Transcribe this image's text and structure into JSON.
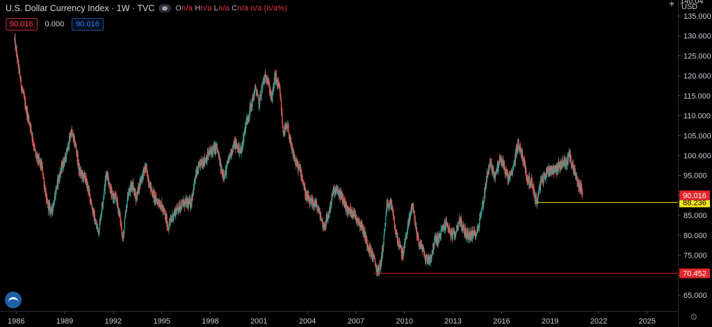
{
  "legend": {
    "title": "U.S. Dollar Currency Index · 1W · TVC",
    "ohlc": [
      {
        "key": "O",
        "val": "n/a"
      },
      {
        "key": "H",
        "val": "n/a"
      },
      {
        "key": "L",
        "val": "n/a"
      },
      {
        "key": "C",
        "val": "n/a"
      },
      {
        "key": "",
        "val": "n/a (n/a%)"
      }
    ],
    "badges": {
      "last": "90.016",
      "change": "0.000",
      "close": "90.016"
    },
    "eye_icon": "eye-toggle-icon"
  },
  "axis": {
    "currency": "USD",
    "top_partial_label": "140.04"
  },
  "chart_data": {
    "type": "candlestick",
    "title": "U.S. Dollar Currency Index",
    "interval": "1W",
    "source": "TVC",
    "ylim": [
      61,
      139
    ],
    "xlim": [
      1985.0,
      2026.9
    ],
    "y_ticks": [
      "135.000",
      "130.000",
      "125.000",
      "120.000",
      "115.000",
      "110.000",
      "105.000",
      "100.000",
      "95.000",
      "90.000",
      "85.000",
      "80.000",
      "75.000",
      "70.000",
      "65.000"
    ],
    "x_ticks": [
      "1986",
      "1989",
      "1992",
      "1995",
      "1998",
      "2001",
      "2004",
      "2007",
      "2010",
      "2013",
      "2016",
      "2019",
      "2022",
      "2025"
    ],
    "path": [
      [
        1985.9,
        129.0
      ],
      [
        1986.3,
        118.0
      ],
      [
        1986.6,
        112.0
      ],
      [
        1986.9,
        107.0
      ],
      [
        1987.2,
        100.0
      ],
      [
        1987.6,
        97.0
      ],
      [
        1987.9,
        88.0
      ],
      [
        1988.2,
        86.0
      ],
      [
        1988.6,
        94.0
      ],
      [
        1988.9,
        98.0
      ],
      [
        1989.1,
        100.0
      ],
      [
        1989.4,
        106.0
      ],
      [
        1989.7,
        102.0
      ],
      [
        1989.9,
        96.0
      ],
      [
        1990.3,
        94.0
      ],
      [
        1990.6,
        89.0
      ],
      [
        1990.9,
        83.0
      ],
      [
        1991.1,
        81.0
      ],
      [
        1991.4,
        90.0
      ],
      [
        1991.6,
        96.0
      ],
      [
        1991.9,
        90.0
      ],
      [
        1992.2,
        89.0
      ],
      [
        1992.4,
        85.0
      ],
      [
        1992.6,
        79.0
      ],
      [
        1992.9,
        90.0
      ],
      [
        1993.2,
        93.0
      ],
      [
        1993.4,
        89.0
      ],
      [
        1993.7,
        94.0
      ],
      [
        1994.0,
        97.0
      ],
      [
        1994.3,
        92.0
      ],
      [
        1994.6,
        89.0
      ],
      [
        1994.9,
        88.0
      ],
      [
        1995.2,
        85.0
      ],
      [
        1995.4,
        82.0
      ],
      [
        1995.7,
        85.0
      ],
      [
        1996.0,
        87.0
      ],
      [
        1996.4,
        88.0
      ],
      [
        1996.8,
        88.0
      ],
      [
        1997.1,
        95.0
      ],
      [
        1997.4,
        98.0
      ],
      [
        1997.7,
        99.0
      ],
      [
        1998.0,
        101.0
      ],
      [
        1998.4,
        102.0
      ],
      [
        1998.7,
        96.0
      ],
      [
        1998.9,
        95.0
      ],
      [
        1999.2,
        100.0
      ],
      [
        1999.5,
        103.0
      ],
      [
        1999.9,
        101.0
      ],
      [
        2000.2,
        108.0
      ],
      [
        2000.5,
        112.0
      ],
      [
        2000.8,
        117.0
      ],
      [
        2001.0,
        113.0
      ],
      [
        2001.3,
        119.0
      ],
      [
        2001.5,
        120.0
      ],
      [
        2001.8,
        114.0
      ],
      [
        2002.0,
        120.0
      ],
      [
        2002.3,
        116.0
      ],
      [
        2002.5,
        106.0
      ],
      [
        2002.8,
        107.0
      ],
      [
        2003.0,
        102.0
      ],
      [
        2003.3,
        98.0
      ],
      [
        2003.6,
        96.0
      ],
      [
        2003.9,
        90.0
      ],
      [
        2004.2,
        88.0
      ],
      [
        2004.5,
        88.0
      ],
      [
        2004.8,
        85.0
      ],
      [
        2005.0,
        82.0
      ],
      [
        2005.3,
        85.0
      ],
      [
        2005.6,
        91.0
      ],
      [
        2005.9,
        91.0
      ],
      [
        2006.2,
        89.0
      ],
      [
        2006.5,
        86.0
      ],
      [
        2006.8,
        86.0
      ],
      [
        2007.1,
        84.0
      ],
      [
        2007.4,
        82.0
      ],
      [
        2007.7,
        78.0
      ],
      [
        2007.9,
        76.0
      ],
      [
        2008.2,
        73.0
      ],
      [
        2008.3,
        71.0
      ],
      [
        2008.5,
        72.0
      ],
      [
        2008.7,
        78.0
      ],
      [
        2008.9,
        87.0
      ],
      [
        2009.2,
        88.0
      ],
      [
        2009.4,
        82.0
      ],
      [
        2009.7,
        77.0
      ],
      [
        2009.9,
        75.0
      ],
      [
        2010.1,
        80.0
      ],
      [
        2010.4,
        86.0
      ],
      [
        2010.5,
        88.0
      ],
      [
        2010.7,
        82.0
      ],
      [
        2010.9,
        78.0
      ],
      [
        2011.1,
        77.0
      ],
      [
        2011.3,
        74.0
      ],
      [
        2011.6,
        74.0
      ],
      [
        2011.9,
        79.0
      ],
      [
        2012.1,
        79.0
      ],
      [
        2012.4,
        82.0
      ],
      [
        2012.6,
        83.0
      ],
      [
        2012.9,
        80.0
      ],
      [
        2013.1,
        80.0
      ],
      [
        2013.4,
        84.0
      ],
      [
        2013.7,
        81.0
      ],
      [
        2013.9,
        80.0
      ],
      [
        2014.2,
        80.0
      ],
      [
        2014.5,
        81.0
      ],
      [
        2014.7,
        85.0
      ],
      [
        2014.9,
        89.0
      ],
      [
        2015.1,
        95.0
      ],
      [
        2015.3,
        98.0
      ],
      [
        2015.6,
        95.0
      ],
      [
        2015.9,
        99.0
      ],
      [
        2016.1,
        98.0
      ],
      [
        2016.4,
        94.0
      ],
      [
        2016.7,
        96.0
      ],
      [
        2016.9,
        101.0
      ],
      [
        2017.0,
        103.0
      ],
      [
        2017.3,
        100.0
      ],
      [
        2017.6,
        94.0
      ],
      [
        2017.9,
        93.0
      ],
      [
        2018.1,
        89.0
      ],
      [
        2018.2,
        88.5
      ],
      [
        2018.4,
        93.0
      ],
      [
        2018.7,
        95.0
      ],
      [
        2018.9,
        96.5
      ],
      [
        2019.2,
        96.5
      ],
      [
        2019.5,
        97.0
      ],
      [
        2019.8,
        98.5
      ],
      [
        2020.0,
        98.0
      ],
      [
        2020.2,
        100.5
      ],
      [
        2020.3,
        98.0
      ],
      [
        2020.5,
        96.5
      ],
      [
        2020.7,
        93.0
      ],
      [
        2020.9,
        92.0
      ],
      [
        2021.0,
        90.0
      ]
    ],
    "levels": [
      {
        "value": 88.236,
        "label": "88.236",
        "start_x": 2018.2,
        "color": "#f5e51b"
      },
      {
        "value": 70.452,
        "label": "70.452",
        "start_x": 2008.1,
        "color": "#e0262b"
      }
    ],
    "last_price": {
      "value": 90.016,
      "label": "90.016",
      "color": "#e0262b"
    },
    "colors": {
      "up": "#26a69a",
      "down": "#ef5350",
      "background": "#000000",
      "axis_text": "#c9ccd4"
    }
  }
}
